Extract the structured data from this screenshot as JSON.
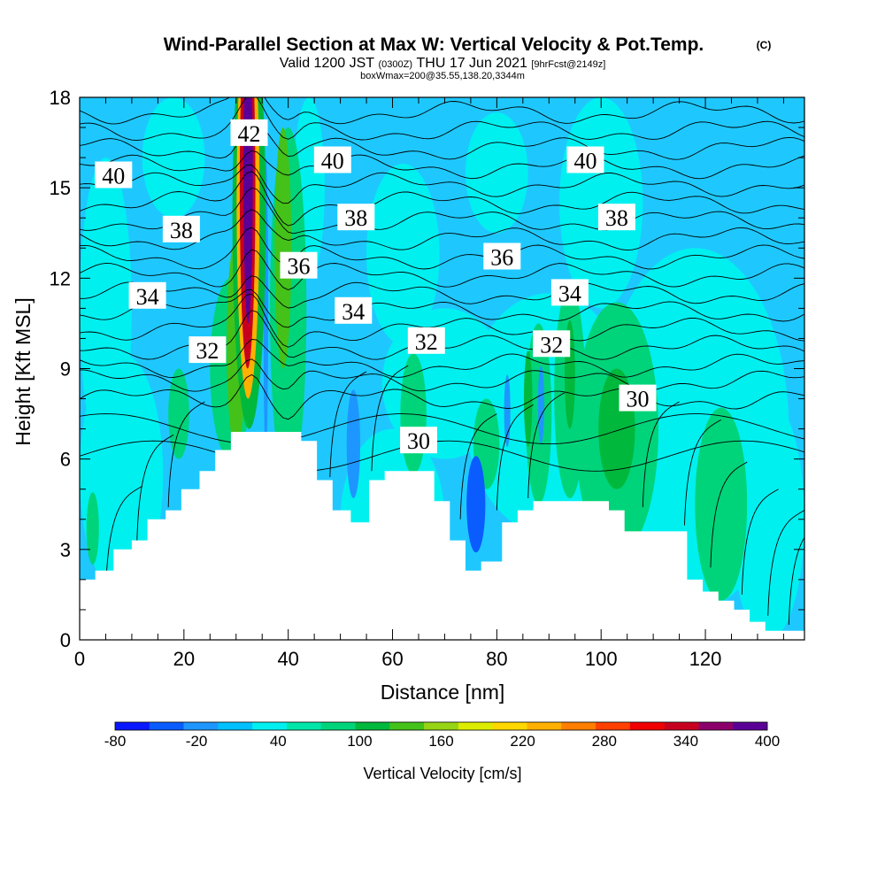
{
  "title": {
    "main": "Wind-Parallel Section at Max W: Vertical Velocity & Pot.Temp.",
    "copyright": "(C)",
    "valid_prefix": "Valid 1200 JST",
    "valid_utc": "(0300Z)",
    "valid_date": "THU 17 Jun 2021",
    "forecast": "[9hrFcst@2149z]",
    "box_info": "boxWmax=200@35.55,138.20,3344m"
  },
  "colors": {
    "background": "#1ec8ff",
    "terrain": "#ffffff",
    "levels": [
      "#0a18ff",
      "#0a5cff",
      "#1e96ff",
      "#00c0ff",
      "#00f0f0",
      "#00e6a8",
      "#00d47a",
      "#00b83c",
      "#44c21a",
      "#96d414",
      "#dcec00",
      "#ffd700",
      "#ffb000",
      "#ff7e00",
      "#ff4000",
      "#f00000",
      "#c80020",
      "#8c006a",
      "#5a0096"
    ]
  },
  "chart_data": {
    "type": "heatmap",
    "xlabel": "Distance [nm]",
    "ylabel": "Height [Kft MSL]",
    "xlim": [
      0,
      139
    ],
    "ylim": [
      0,
      18
    ],
    "x_ticks": [
      "0",
      "20",
      "40",
      "60",
      "80",
      "100",
      "120"
    ],
    "y_ticks": [
      "0",
      "3",
      "6",
      "9",
      "12",
      "15",
      "18"
    ],
    "colorbar": {
      "title": "Vertical Velocity [cm/s]",
      "tick_labels": [
        "-80",
        "-20",
        "40",
        "100",
        "160",
        "220",
        "280",
        "340",
        "400"
      ],
      "levels_min": -80,
      "levels_max": 400,
      "levels_step": 20
    },
    "terrain_profile_kft": [
      [
        0,
        2.0
      ],
      [
        3,
        2.3
      ],
      [
        6.5,
        3.0
      ],
      [
        10,
        3.3
      ],
      [
        13,
        4.0
      ],
      [
        16.5,
        4.3
      ],
      [
        19.5,
        5.0
      ],
      [
        23,
        5.6
      ],
      [
        26,
        6.3
      ],
      [
        29,
        6.9
      ],
      [
        41,
        6.9
      ],
      [
        42.5,
        6.6
      ],
      [
        45.5,
        5.3
      ],
      [
        48.5,
        4.3
      ],
      [
        52,
        3.9
      ],
      [
        55.5,
        5.3
      ],
      [
        58.5,
        5.6
      ],
      [
        65,
        5.6
      ],
      [
        68,
        4.6
      ],
      [
        71,
        3.3
      ],
      [
        74,
        2.3
      ],
      [
        77,
        2.6
      ],
      [
        81,
        3.9
      ],
      [
        84,
        4.3
      ],
      [
        87,
        4.6
      ],
      [
        98.5,
        4.6
      ],
      [
        101.5,
        4.3
      ],
      [
        104.5,
        3.6
      ],
      [
        113.5,
        3.6
      ],
      [
        116.5,
        2.0
      ],
      [
        119.5,
        1.6
      ],
      [
        122.5,
        1.3
      ],
      [
        125.5,
        1.0
      ],
      [
        128.5,
        0.6
      ],
      [
        131.5,
        0.3
      ],
      [
        139,
        0.3
      ]
    ],
    "velocity_features_cms": [
      {
        "x_center_nm": 32,
        "max_cms": 360,
        "note": "main updraft column"
      },
      {
        "x_center_nm": 39,
        "max_cms": 100
      },
      {
        "x_center_nm": 35.5,
        "min_cms": -40
      },
      {
        "x_center_nm": 52.5,
        "min_cms": -40
      },
      {
        "x_center_nm": 76,
        "min_cms": -60
      },
      {
        "x_center_nm": 86,
        "max_cms": 60
      },
      {
        "x_center_nm": 103,
        "max_cms": 60
      },
      {
        "x_center_nm": 123,
        "max_cms": 40
      }
    ],
    "theta_contour_labels": [
      {
        "text": "40",
        "x": 6.5,
        "y": 15.4
      },
      {
        "text": "40",
        "x": 48.5,
        "y": 15.9
      },
      {
        "text": "40",
        "x": 97,
        "y": 15.9
      },
      {
        "text": "38",
        "x": 19.5,
        "y": 13.6
      },
      {
        "text": "38",
        "x": 53,
        "y": 14.0
      },
      {
        "text": "38",
        "x": 103,
        "y": 14.0
      },
      {
        "text": "36",
        "x": 42,
        "y": 12.4
      },
      {
        "text": "36",
        "x": 81,
        "y": 12.7
      },
      {
        "text": "34",
        "x": 13,
        "y": 11.4
      },
      {
        "text": "34",
        "x": 52.5,
        "y": 10.9
      },
      {
        "text": "34",
        "x": 94,
        "y": 11.5
      },
      {
        "text": "32",
        "x": 24.5,
        "y": 9.6
      },
      {
        "text": "32",
        "x": 66.5,
        "y": 9.9
      },
      {
        "text": "32",
        "x": 90.5,
        "y": 9.8
      },
      {
        "text": "30",
        "x": 65,
        "y": 6.6
      },
      {
        "text": "30",
        "x": 107,
        "y": 8.0
      },
      {
        "text": "42",
        "x": 32.5,
        "y": 16.8
      }
    ]
  }
}
